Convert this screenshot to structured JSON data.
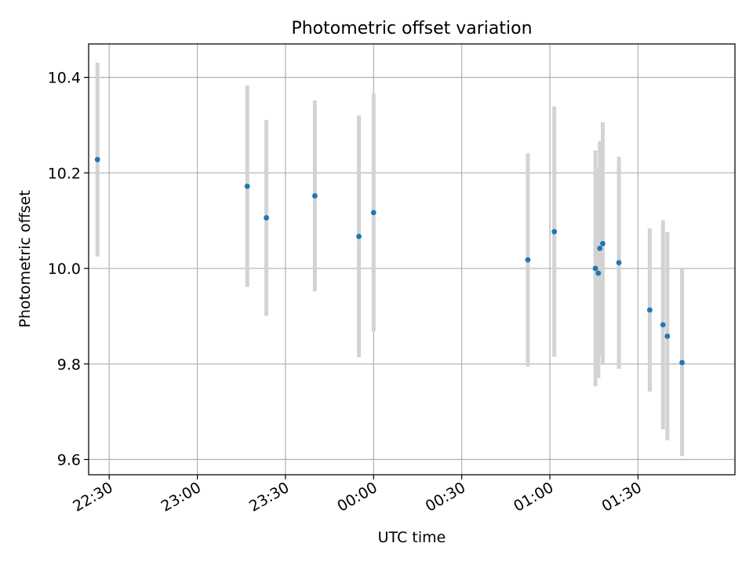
{
  "chart_data": {
    "type": "scatter",
    "title": "Photometric offset variation",
    "xlabel": "UTC time",
    "ylabel": "Photometric offset",
    "xlim": [
      "2021-01-01T22:23:00",
      "2021-01-02T02:03:00"
    ],
    "ylim": [
      9.568,
      10.47
    ],
    "grid": true,
    "x_ticks": [
      {
        "t": "2021-01-01T22:30:00",
        "label": "22:30"
      },
      {
        "t": "2021-01-01T23:00:00",
        "label": "23:00"
      },
      {
        "t": "2021-01-01T23:30:00",
        "label": "23:30"
      },
      {
        "t": "2021-01-02T00:00:00",
        "label": "00:00"
      },
      {
        "t": "2021-01-02T00:30:00",
        "label": "00:30"
      },
      {
        "t": "2021-01-02T01:00:00",
        "label": "01:00"
      },
      {
        "t": "2021-01-02T01:30:00",
        "label": "01:30"
      }
    ],
    "y_ticks": [
      {
        "v": 9.6,
        "label": "9.6"
      },
      {
        "v": 9.8,
        "label": "9.8"
      },
      {
        "v": 10.0,
        "label": "10.0"
      },
      {
        "v": 10.2,
        "label": "10.2"
      },
      {
        "v": 10.4,
        "label": "10.4"
      }
    ],
    "colors": {
      "marker": "#1f77b4",
      "errorbar": "#d3d3d3",
      "grid": "#b0b0b0",
      "frame": "#000000"
    },
    "points": [
      {
        "t": "2021-01-01T22:26:00",
        "y": 10.228,
        "err": 0.203
      },
      {
        "t": "2021-01-01T23:17:00",
        "y": 10.172,
        "err": 0.211
      },
      {
        "t": "2021-01-01T23:23:30",
        "y": 10.106,
        "err": 0.205
      },
      {
        "t": "2021-01-01T23:40:00",
        "y": 10.152,
        "err": 0.2
      },
      {
        "t": "2021-01-01T23:55:00",
        "y": 10.067,
        "err": 0.253
      },
      {
        "t": "2021-01-02T00:00:00",
        "y": 10.117,
        "err": 0.249
      },
      {
        "t": "2021-01-02T00:52:30",
        "y": 10.018,
        "err": 0.223
      },
      {
        "t": "2021-01-02T01:01:30",
        "y": 10.077,
        "err": 0.262
      },
      {
        "t": "2021-01-02T01:15:30",
        "y": 10.0,
        "err": 0.247
      },
      {
        "t": "2021-01-02T01:16:30",
        "y": 9.99,
        "err": 0.22
      },
      {
        "t": "2021-01-02T01:17:00",
        "y": 10.042,
        "err": 0.224
      },
      {
        "t": "2021-01-02T01:18:00",
        "y": 10.052,
        "err": 0.254
      },
      {
        "t": "2021-01-02T01:23:30",
        "y": 10.012,
        "err": 0.222
      },
      {
        "t": "2021-01-02T01:34:00",
        "y": 9.913,
        "err": 0.171
      },
      {
        "t": "2021-01-02T01:38:30",
        "y": 9.882,
        "err": 0.219
      },
      {
        "t": "2021-01-02T01:40:00",
        "y": 9.858,
        "err": 0.218
      },
      {
        "t": "2021-01-02T01:45:00",
        "y": 9.803,
        "err": 0.196
      }
    ]
  }
}
